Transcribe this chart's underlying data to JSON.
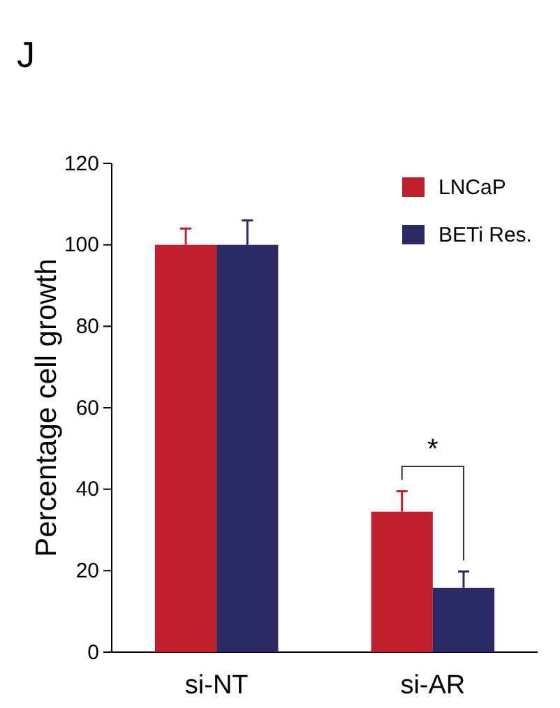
{
  "chart_data": {
    "type": "bar",
    "title": "J",
    "ylabel": "Percentage cell growth",
    "categories": [
      "si-NT",
      "si-AR"
    ],
    "series": [
      {
        "name": "LNCaP",
        "color": "#c0202e",
        "values": [
          100,
          34.5
        ],
        "errors": [
          4,
          5
        ]
      },
      {
        "name": "BETi Res.",
        "color": "#2b2a64",
        "values": [
          100,
          15.8
        ],
        "errors": [
          6,
          4
        ]
      }
    ],
    "ylim": [
      0,
      120
    ],
    "yticks": [
      0,
      20,
      40,
      60,
      80,
      100,
      120
    ],
    "legend": "top right",
    "grid": false,
    "annotations": [
      "*"
    ]
  }
}
